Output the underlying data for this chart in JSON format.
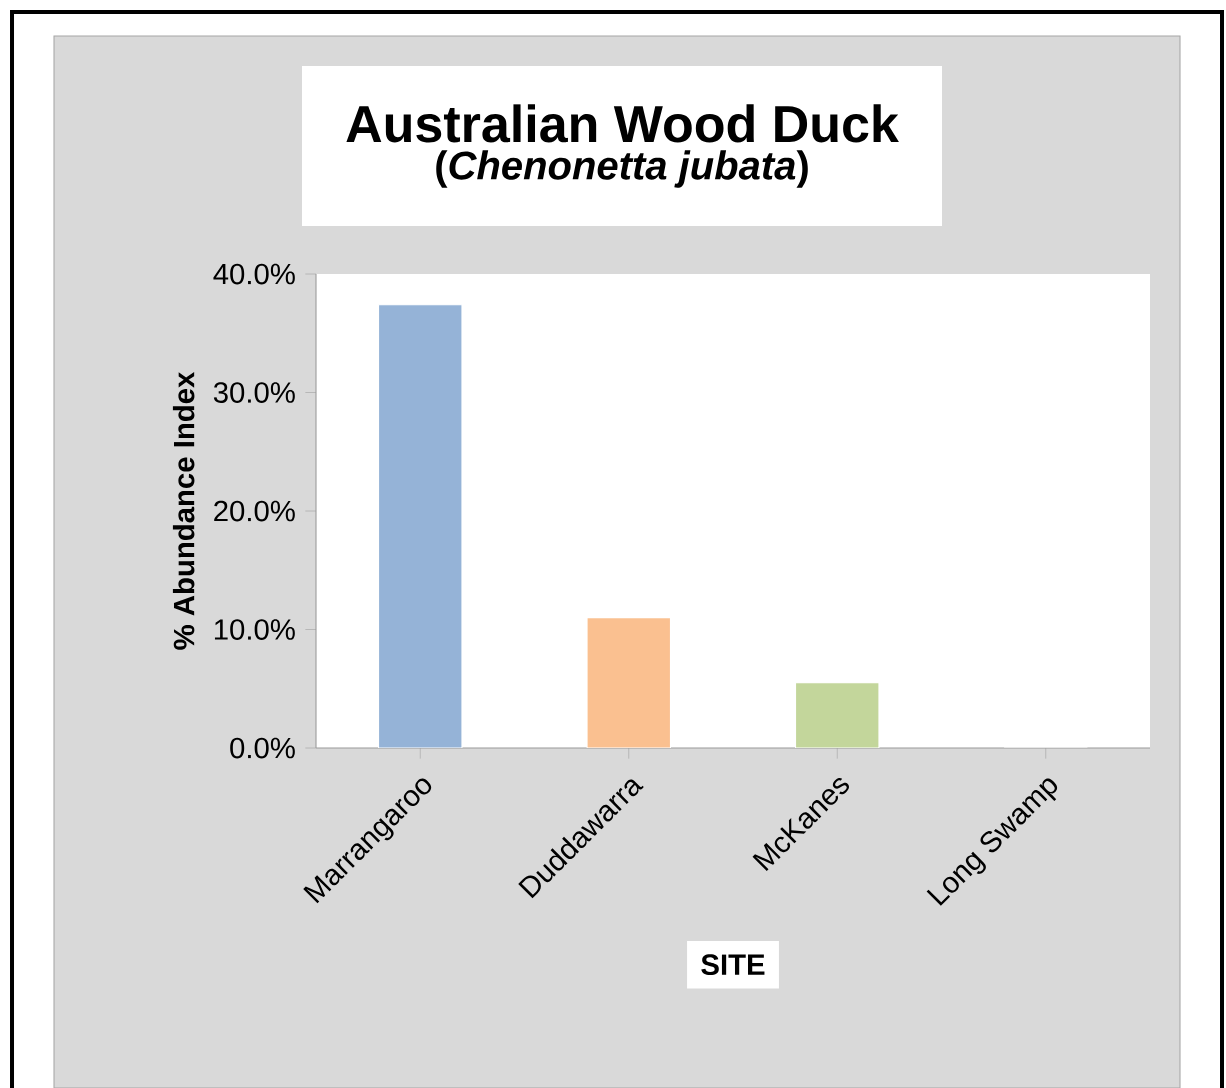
{
  "chart_data": {
    "type": "bar",
    "title": "Australian Wood Duck",
    "subtitle": "(*Chenonetta jubata*)",
    "xlabel": "SITE",
    "ylabel": "% Abundance Index",
    "categories": [
      "Marrangaroo",
      "Duddawarra",
      "McKanes",
      "Long Swamp"
    ],
    "values": [
      37.4,
      11.0,
      5.5,
      0
    ],
    "colors": [
      "#95b3d7",
      "#fac090",
      "#c3d69b",
      "#b3a2c7"
    ],
    "ylim": [
      0,
      40
    ],
    "yticks": [
      {
        "value": 0,
        "label": "0.0%"
      },
      {
        "value": 10,
        "label": "10.0%"
      },
      {
        "value": 20,
        "label": "20.0%"
      },
      {
        "value": 30,
        "label": "30.0%"
      },
      {
        "value": 40,
        "label": "40.0%"
      }
    ],
    "grid": false
  }
}
